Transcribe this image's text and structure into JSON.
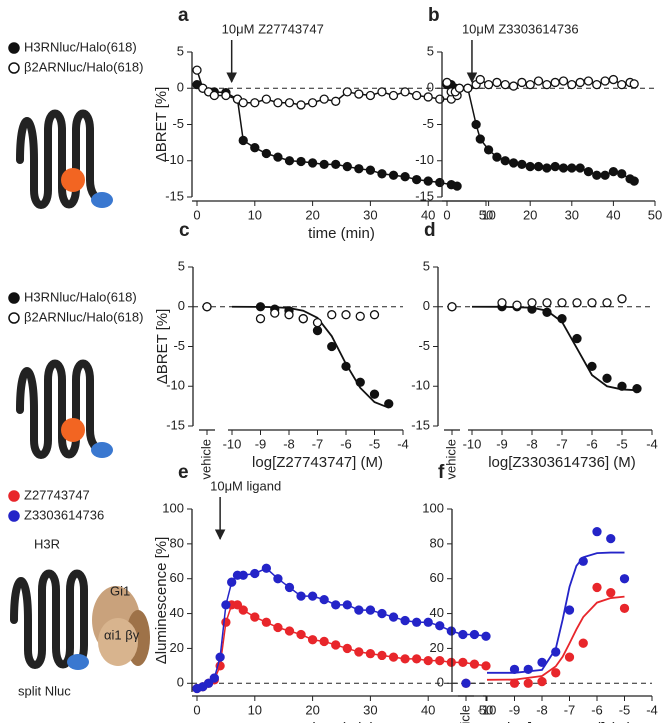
{
  "chart_data": [
    {
      "type": "line",
      "label": "a",
      "x_label": "time (min)",
      "y_label": "ΔBRET [%]",
      "annotation": "10μM Z27743747",
      "arrow_at": 6,
      "x": [
        0,
        1,
        2,
        3,
        5,
        7,
        8,
        10,
        12,
        14,
        16,
        18,
        20,
        22,
        24,
        26,
        28,
        30,
        32,
        34,
        36,
        38,
        40,
        42,
        44,
        45
      ],
      "series": [
        {
          "name": "H3RNluc/Halo(618)",
          "color": "#111111",
          "fill": "#111111",
          "values": [
            0.5,
            0,
            -0.5,
            -0.5,
            -0.6,
            -1.5,
            -7.2,
            -8.2,
            -9,
            -9.5,
            -10,
            -10.1,
            -10.3,
            -10.5,
            -10.5,
            -10.8,
            -11.1,
            -11.3,
            -11.8,
            -12,
            -12.2,
            -12.6,
            -12.8,
            -13,
            -13.3,
            -13.5
          ]
        },
        {
          "name": "β2ARNluc/Halo(618)",
          "color": "#111111",
          "fill": "#ffffff",
          "values": [
            2.5,
            0,
            -0.5,
            -1,
            -1,
            -1.5,
            -2,
            -2,
            -1.5,
            -2,
            -2,
            -2.3,
            -2,
            -1.5,
            -1.8,
            -0.5,
            -0.8,
            -1,
            -0.5,
            -1,
            -0.5,
            -1,
            -1.2,
            -1.5,
            -1.5,
            -1
          ]
        }
      ],
      "xlim": [
        0,
        50
      ],
      "xticks": [
        0,
        10,
        20,
        30,
        40,
        50
      ],
      "ylim": [
        -15,
        5
      ],
      "yticks": [
        -15,
        -10,
        -5,
        0,
        5
      ],
      "hline": 0
    },
    {
      "type": "line",
      "label": "b",
      "annotation": "10μM Z3303614736",
      "arrow_at": 6,
      "x": [
        0,
        1,
        2,
        3,
        5,
        7,
        8,
        10,
        12,
        14,
        16,
        18,
        20,
        22,
        24,
        26,
        28,
        30,
        32,
        34,
        36,
        38,
        40,
        42,
        44,
        45
      ],
      "series": [
        {
          "color": "#111111",
          "fill": "#111111",
          "values": [
            0.5,
            0.5,
            0,
            0,
            0,
            -5,
            -7,
            -8.5,
            -9.5,
            -10,
            -10.3,
            -10.5,
            -10.8,
            -10.8,
            -11,
            -10.8,
            -11,
            -11,
            -11,
            -11.5,
            -12,
            -12,
            -11.5,
            -11.8,
            -12.5,
            -12.8
          ]
        },
        {
          "color": "#111111",
          "fill": "#ffffff",
          "values": [
            0.8,
            -0.5,
            -0.5,
            0,
            0,
            0.5,
            1.2,
            0.5,
            0.8,
            0.5,
            0.3,
            0.8,
            0.5,
            1,
            0.5,
            0.8,
            1,
            0.5,
            0.8,
            1,
            0.5,
            1,
            1.2,
            0.5,
            0.8,
            0.6
          ]
        }
      ],
      "xlim": [
        0,
        50
      ],
      "xticks": [
        0,
        10,
        20,
        30,
        40,
        50
      ],
      "ylim": [
        -15,
        5
      ],
      "yticks": [
        -15,
        -10,
        -5,
        0,
        5
      ],
      "hline": 0
    },
    {
      "type": "scatter",
      "label": "c",
      "x_label": "log[Z27743747] (M)",
      "y_label": "ΔBRET [%]",
      "vehicle_label": "vehicle",
      "x": [
        -9,
        -8.5,
        -8,
        -7.5,
        -7,
        -6.5,
        -6,
        -5.5,
        -5,
        -4.5
      ],
      "series": [
        {
          "name": "H3RNluc/Halo(618)",
          "color": "#111111",
          "fill": "#111111",
          "vehicle_value": 0,
          "values": [
            0,
            -0.3,
            -0.5,
            -1.5,
            -3,
            -5,
            -7.5,
            -9.5,
            -11,
            -12.2
          ]
        },
        {
          "name": "β2ARNluc/Halo(618)",
          "color": "#111111",
          "fill": "#ffffff",
          "vehicle_value": 0,
          "values": [
            -1.5,
            -0.8,
            -1,
            -1.5,
            -2,
            -1,
            -1,
            -1.2,
            -1,
            null
          ]
        }
      ],
      "fits": [
        {
          "color": "#111111",
          "x": [
            -10,
            -9,
            -8.5,
            -8,
            -7.5,
            -7,
            -6.5,
            -6,
            -5.5,
            -5,
            -4.5
          ],
          "values": [
            0,
            -0.02,
            -0.06,
            -0.16,
            -0.5,
            -1.4,
            -3.7,
            -7.2,
            -10.2,
            -12,
            -12.7
          ]
        }
      ],
      "xlim": [
        -10,
        -4
      ],
      "xticks": [
        -10,
        -9,
        -8,
        -7,
        -6,
        -5,
        -4
      ],
      "ylim": [
        -15,
        5
      ],
      "yticks": [
        -15,
        -10,
        -5,
        0,
        5
      ],
      "hline": 0
    },
    {
      "type": "scatter",
      "label": "d",
      "x_label": "log[Z3303614736] (M)",
      "vehicle_label": "vehicle",
      "x": [
        -9,
        -8.5,
        -8,
        -7.5,
        -7,
        -6.5,
        -6,
        -5.5,
        -5,
        -4.5
      ],
      "series": [
        {
          "color": "#111111",
          "fill": "#111111",
          "vehicle_value": 0,
          "values": [
            0,
            0,
            -0.3,
            -0.7,
            -1.5,
            -4,
            -7.5,
            -9,
            -10,
            -10.3
          ]
        },
        {
          "color": "#111111",
          "fill": "#ffffff",
          "vehicle_value": 0,
          "values": [
            0.5,
            0.2,
            0.5,
            0.5,
            0.5,
            0.5,
            0.5,
            0.5,
            1,
            null
          ]
        }
      ],
      "fits": [
        {
          "color": "#111111",
          "x": [
            -10,
            -9,
            -8,
            -7.5,
            -7,
            -6.5,
            -6,
            -5.5,
            -5,
            -4.5
          ],
          "values": [
            0,
            -0.006,
            -0.12,
            -0.5,
            -1.9,
            -5.25,
            -8.6,
            -10,
            -10.4,
            -10.5
          ]
        }
      ],
      "xlim": [
        -10,
        -4
      ],
      "xticks": [
        -10,
        -9,
        -8,
        -7,
        -6,
        -5,
        -4
      ],
      "ylim": [
        -15,
        5
      ],
      "yticks": [
        -15,
        -10,
        -5,
        0,
        5
      ],
      "hline": 0
    },
    {
      "type": "line",
      "label": "e",
      "x_label": "time (min)",
      "y_label": "Δluminescence [%]",
      "annotation": "10μM ligand",
      "arrow_at": 4,
      "x": [
        0,
        1,
        2,
        3,
        4,
        5,
        6,
        7,
        8,
        10,
        12,
        14,
        16,
        18,
        20,
        22,
        24,
        26,
        28,
        30,
        32,
        34,
        36,
        38,
        40,
        42,
        44,
        46,
        48,
        50
      ],
      "series": [
        {
          "name": "Z27743747",
          "color": "#e8262b",
          "fill": "#e8262b",
          "values": [
            -3,
            -2,
            0,
            2,
            10,
            35,
            45,
            45,
            42,
            38,
            35,
            32,
            30,
            28,
            25,
            24,
            22,
            20,
            18,
            17,
            16,
            15,
            14,
            14,
            13,
            13,
            12,
            12,
            11,
            10
          ]
        },
        {
          "name": "Z3303614736",
          "color": "#2424c8",
          "fill": "#2424c8",
          "values": [
            -3,
            -2,
            0,
            3,
            15,
            45,
            58,
            62,
            62,
            63,
            66,
            60,
            55,
            50,
            50,
            48,
            45,
            45,
            42,
            42,
            40,
            38,
            36,
            35,
            35,
            33,
            30,
            28,
            28,
            27
          ]
        }
      ],
      "xlim": [
        0,
        50
      ],
      "xticks": [
        0,
        10,
        20,
        30,
        40,
        50
      ],
      "ylim": [
        -5,
        100
      ],
      "yticks": [
        0,
        20,
        40,
        60,
        80,
        100
      ],
      "hline": 0
    },
    {
      "type": "scatter",
      "label": "f",
      "x_label": "log[compound] (M)",
      "vehicle_label": "vehicle",
      "x": [
        -9,
        -8.5,
        -8,
        -7.5,
        -7,
        -6.5,
        -6,
        -5.5,
        -5
      ],
      "series": [
        {
          "color": "#e8262b",
          "fill": "#e8262b",
          "vehicle_value": 0,
          "values": [
            0,
            0,
            1,
            6,
            15,
            23,
            55,
            52,
            43
          ]
        },
        {
          "color": "#2424c8",
          "fill": "#2424c8",
          "vehicle_value": 0,
          "values": [
            8,
            8,
            12,
            18,
            42,
            70,
            87,
            83,
            60
          ]
        }
      ],
      "fits": [
        {
          "color": "#e8262b",
          "x": [
            -10,
            -9,
            -8,
            -7.5,
            -7.25,
            -7,
            -6.75,
            -6.5,
            -6,
            -5.5,
            -5
          ],
          "values": [
            2,
            2.1,
            4.2,
            9.7,
            15.2,
            22.9,
            30.9,
            38,
            46.3,
            48.9,
            49.7
          ]
        },
        {
          "color": "#2424c8",
          "x": [
            -10,
            -9,
            -8,
            -7.5,
            -7.25,
            -7,
            -6.75,
            -6.5,
            -6,
            -5.5,
            -5
          ],
          "values": [
            6,
            6,
            7.7,
            19.8,
            36.5,
            55.3,
            67.3,
            72.3,
            74.7,
            75,
            75
          ]
        }
      ],
      "xlim": [
        -10,
        -4
      ],
      "xticks": [
        -10,
        -9,
        -8,
        -7,
        -6,
        -5,
        -4
      ],
      "ylim": [
        -5,
        100
      ],
      "yticks": [
        0,
        20,
        40,
        60,
        80,
        100
      ],
      "hline": 0
    }
  ],
  "diagram": {
    "receptor": "H3R",
    "g_protein": "Gi1",
    "subunits": "αi1 βγ",
    "sensor": "split Nluc"
  }
}
